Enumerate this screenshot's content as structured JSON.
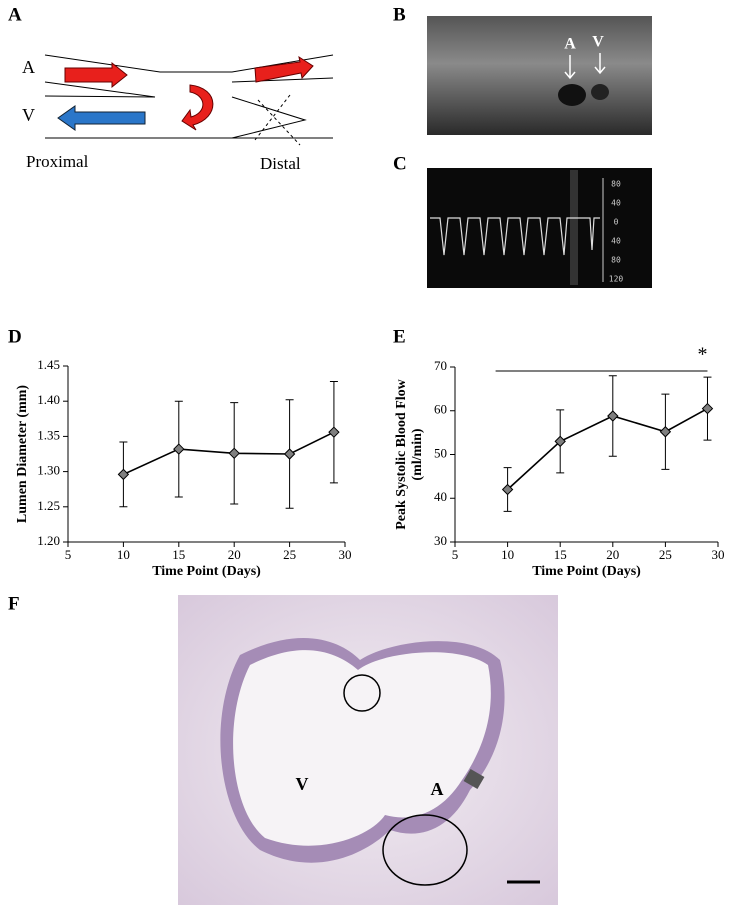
{
  "panels": [
    "A",
    "B",
    "C",
    "D",
    "E",
    "F"
  ],
  "diagram": {
    "labels": [
      "A",
      "V",
      "Proximal",
      "Distal"
    ]
  },
  "ultrasound": {
    "labels": [
      "A",
      "V"
    ]
  },
  "doppler": {
    "scale": [
      "80",
      "40",
      "0",
      "40",
      "80",
      "120"
    ]
  },
  "histology": {
    "labels": [
      "V",
      "A"
    ]
  },
  "chart_data": [
    {
      "type": "line",
      "xlabel": "Time Point (Days)",
      "ylabel": [
        "Lumen Diameter  (mm)"
      ],
      "x": [
        10,
        15,
        20,
        25,
        29
      ],
      "series": [
        {
          "color": "#7f7f7f",
          "values": [
            1.296,
            1.332,
            1.326,
            1.325,
            1.356
          ],
          "errors": [
            0.046,
            0.068,
            0.072,
            0.077,
            0.072
          ]
        }
      ],
      "xlim": [
        5,
        30
      ],
      "xticks": [
        5,
        10,
        15,
        20,
        25,
        30
      ],
      "ylim": [
        1.2,
        1.45
      ],
      "yticks": [
        {
          "value": 1.2,
          "label": "1.20"
        },
        1.25,
        {
          "value": 1.3,
          "label": "1.30"
        },
        1.35,
        {
          "value": 1.4,
          "label": "1.40"
        },
        1.45
      ],
      "grid": false
    },
    {
      "type": "line",
      "xlabel": "Time Point (Days)",
      "ylabel": [
        "Peak Systolic Blood Flow",
        "(ml/min)"
      ],
      "x": [
        10,
        15,
        20,
        25,
        29
      ],
      "series": [
        {
          "color": "#7f7f7f",
          "values": [
            42,
            53,
            58.8,
            55.2,
            60.5
          ],
          "errors": [
            5,
            7.2,
            9.2,
            8.6,
            7.2
          ]
        }
      ],
      "xlim": [
        5,
        30
      ],
      "xticks": [
        5,
        10,
        15,
        20,
        25,
        30
      ],
      "ylim": [
        30,
        70
      ],
      "yticks": [
        30,
        40,
        50,
        60,
        70
      ],
      "annotation": "*",
      "grid": false
    }
  ]
}
